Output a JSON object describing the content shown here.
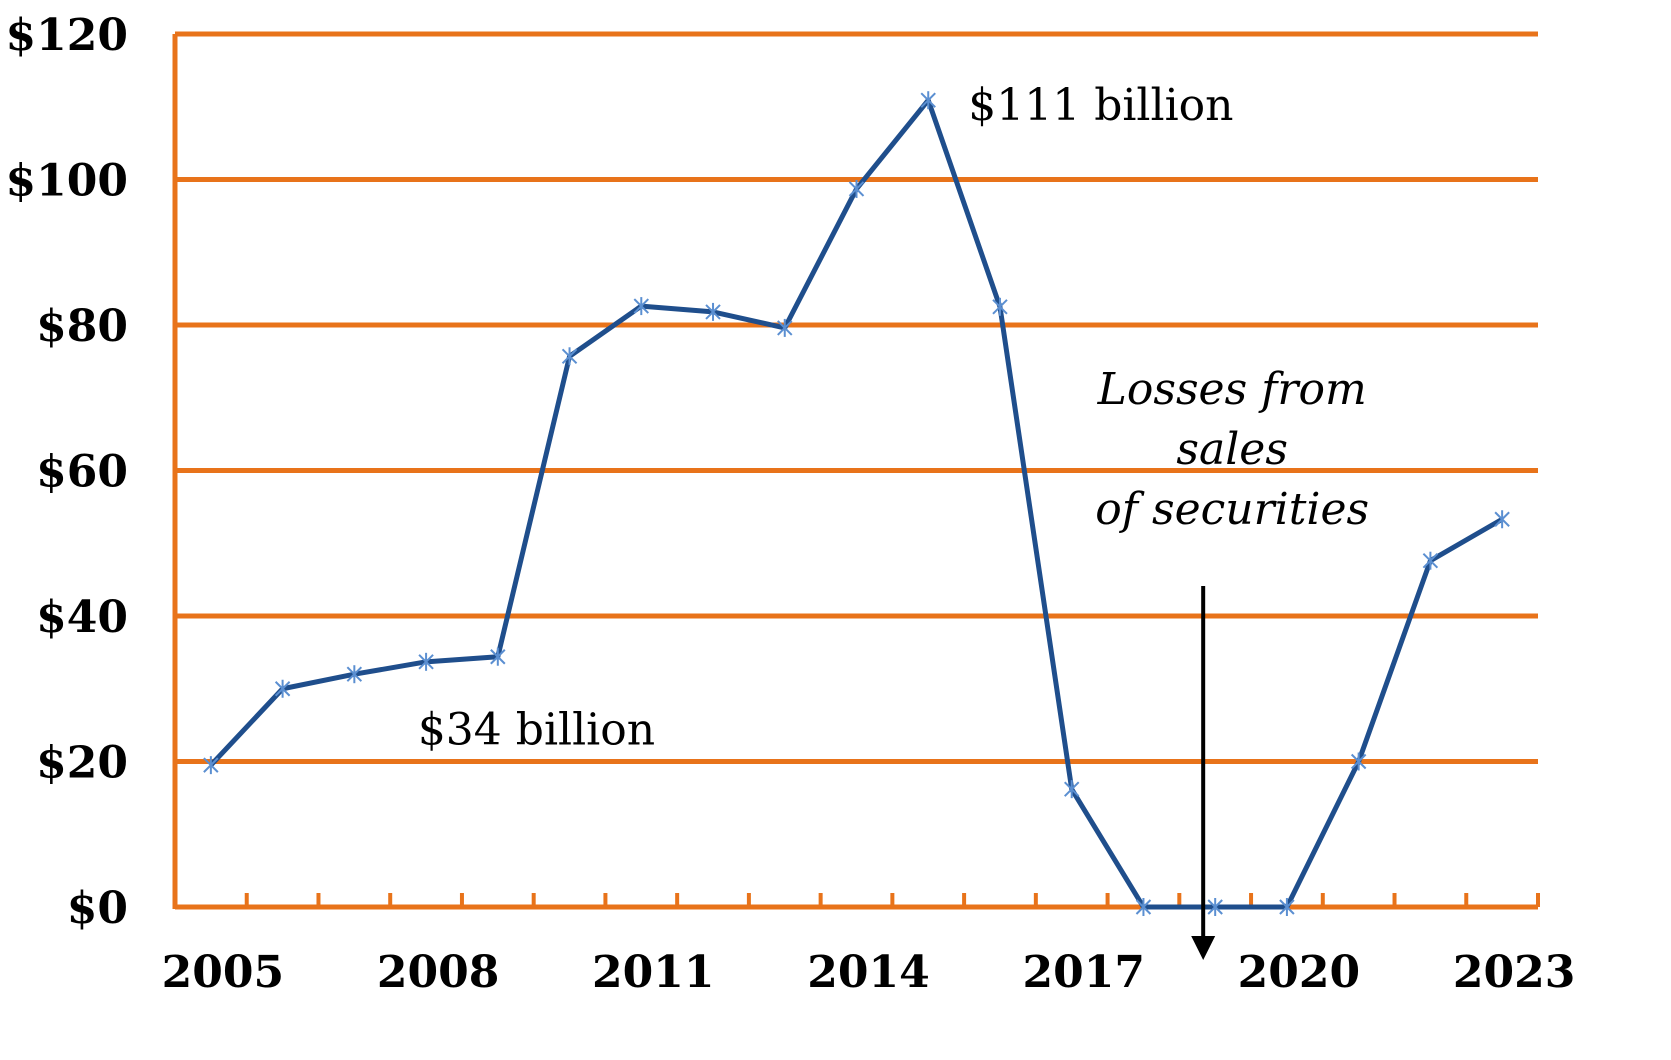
{
  "chart_data": {
    "type": "line",
    "title": "",
    "xlabel": "",
    "ylabel": "",
    "x": [
      2005,
      2006,
      2007,
      2008,
      2009,
      2010,
      2011,
      2012,
      2013,
      2014,
      2015,
      2016,
      2017,
      2018,
      2019,
      2020,
      2021,
      2022,
      2023
    ],
    "series": [
      {
        "values": [
          19.5,
          30,
          32,
          33.7,
          34.4,
          75.7,
          82.6,
          81.8,
          79.6,
          98.7,
          110.9,
          82.5,
          16.2,
          0,
          0,
          0,
          20,
          47.6,
          53.3
        ]
      }
    ],
    "ylim": [
      0,
      120
    ],
    "yticks": [
      0,
      20,
      40,
      60,
      80,
      100,
      120
    ],
    "ytick_labels": [
      "$0",
      "$20",
      "$40",
      "$60",
      "$80",
      "$100",
      "$120"
    ],
    "xtick_labels": [
      "2005",
      "2008",
      "2011",
      "2014",
      "2017",
      "2020",
      "2023"
    ],
    "xtick_values": [
      2005,
      2008,
      2011,
      2014,
      2017,
      2020,
      2023
    ],
    "grid": true,
    "colors": {
      "line": "#1f4e8c",
      "marker": "#5b8fd1",
      "grid": "#e8731a",
      "axis": "#e8731a",
      "arrow": "#000000"
    },
    "annotations": [
      {
        "id": "peak",
        "text": "$111 billion",
        "x": 2015,
        "y": 110.9
      },
      {
        "id": "low",
        "text": "$34 billion",
        "x": 2009,
        "y": 34.4
      },
      {
        "id": "losses",
        "lines": [
          "Losses from",
          "sales",
          "of securities"
        ],
        "x": 2019,
        "y": 0
      }
    ]
  }
}
